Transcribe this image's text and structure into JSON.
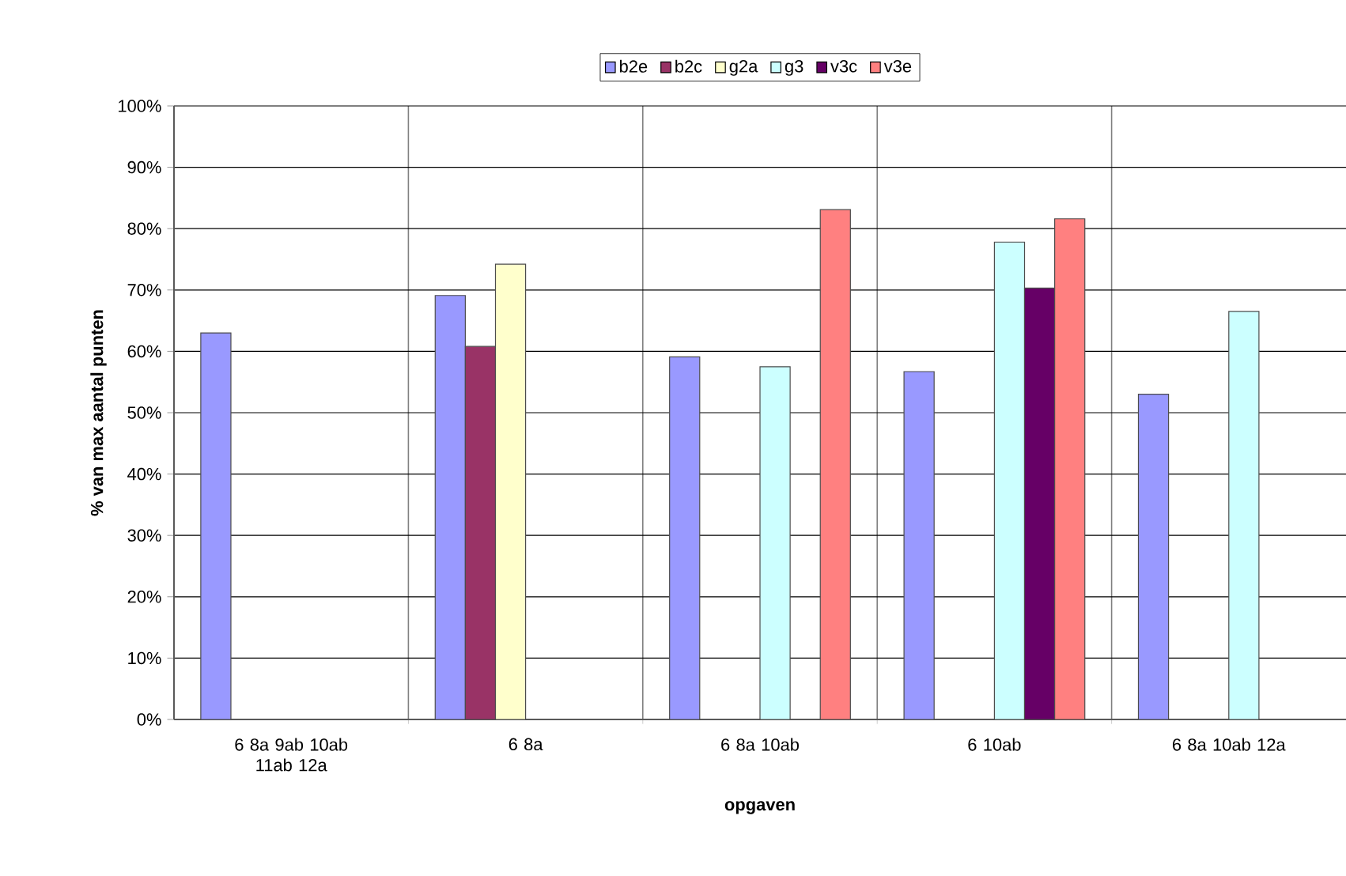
{
  "chart_data": {
    "type": "bar",
    "xlabel": "opgaven",
    "ylabel": "% van max aantal punten",
    "categories": [
      "6 8a 9ab 10ab 11ab 12a",
      "6 8a",
      "6 8a 10ab",
      "6 10ab",
      "6 8a 10ab 12a"
    ],
    "series": [
      {
        "name": "b2e",
        "color": "#9999ff",
        "values": [
          63,
          69.1,
          59.1,
          56.7,
          53
        ]
      },
      {
        "name": "b2c",
        "color": "#993366",
        "values": [
          null,
          60.8,
          null,
          null,
          null
        ]
      },
      {
        "name": "g2a",
        "color": "#ffffcc",
        "values": [
          null,
          74.2,
          null,
          null,
          null
        ]
      },
      {
        "name": "g3",
        "color": "#ccffff",
        "values": [
          null,
          null,
          57.5,
          77.8,
          66.5
        ]
      },
      {
        "name": "v3c",
        "color": "#660066",
        "values": [
          null,
          null,
          null,
          70.3,
          null
        ]
      },
      {
        "name": "v3e",
        "color": "#ff8080",
        "values": [
          null,
          null,
          83.1,
          81.6,
          null
        ]
      }
    ],
    "ylim": [
      0,
      100
    ],
    "yticks": [
      {
        "value": 0,
        "label": "0%"
      },
      {
        "value": 10,
        "label": "10%"
      },
      {
        "value": 20,
        "label": "20%"
      },
      {
        "value": 30,
        "label": "30%"
      },
      {
        "value": 40,
        "label": "40%"
      },
      {
        "value": 50,
        "label": "50%"
      },
      {
        "value": 60,
        "label": "60%"
      },
      {
        "value": 70,
        "label": "70%"
      },
      {
        "value": 80,
        "label": "80%"
      },
      {
        "value": 90,
        "label": "90%"
      },
      {
        "value": 100,
        "label": "100%"
      }
    ],
    "grid": true,
    "legend": "top"
  }
}
